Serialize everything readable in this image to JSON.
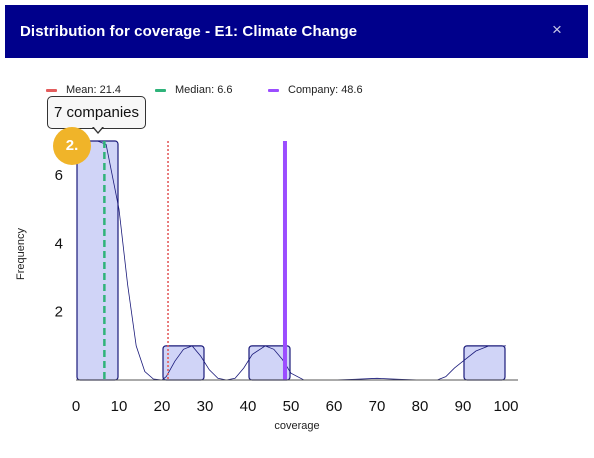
{
  "modal": {
    "title": "Distribution for coverage - E1: Climate Change",
    "close_symbol": "×"
  },
  "legend": {
    "mean_label": "Mean: 21.4",
    "median_label": "Median: 6.6",
    "company_label": "Company: 48.6",
    "mean_color": "#e35d5d",
    "median_color": "#2fb37a",
    "company_color": "#9b4dff"
  },
  "tooltip": {
    "text": "7 companies"
  },
  "step_badge": {
    "text": "2."
  },
  "chart_data": {
    "type": "bar",
    "xlabel": "coverage",
    "ylabel": "Frequency",
    "xlim": [
      0,
      100
    ],
    "ylim": [
      0,
      7
    ],
    "x_ticks": [
      "0",
      "10",
      "20",
      "30",
      "40",
      "50",
      "60",
      "70",
      "80",
      "90",
      "100"
    ],
    "y_ticks": [
      "2",
      "4",
      "6"
    ],
    "bins": [
      {
        "x0": 0,
        "x1": 10,
        "count": 7
      },
      {
        "x0": 20,
        "x1": 30,
        "count": 1
      },
      {
        "x0": 40,
        "x1": 50,
        "count": 1
      },
      {
        "x0": 90,
        "x1": 100,
        "count": 1
      }
    ],
    "mean": 21.4,
    "median": 6.6,
    "company": 48.6,
    "density": [
      [
        0,
        7
      ],
      [
        5,
        7
      ],
      [
        7,
        6.9
      ],
      [
        10,
        5.0
      ],
      [
        12,
        2.8
      ],
      [
        14,
        1.0
      ],
      [
        16,
        0.25
      ],
      [
        18,
        0.03
      ],
      [
        20,
        0.0
      ],
      [
        21,
        0.1
      ],
      [
        23,
        0.55
      ],
      [
        25,
        0.9
      ],
      [
        27,
        1.0
      ],
      [
        29,
        0.7
      ],
      [
        31,
        0.3
      ],
      [
        33,
        0.05
      ],
      [
        35,
        0.0
      ],
      [
        37,
        0.05
      ],
      [
        39,
        0.35
      ],
      [
        41,
        0.75
      ],
      [
        44,
        1.0
      ],
      [
        46,
        0.9
      ],
      [
        48,
        0.6
      ],
      [
        50,
        0.2
      ],
      [
        53,
        0.0
      ],
      [
        60,
        0.0
      ],
      [
        65,
        0.02
      ],
      [
        70,
        0.05
      ],
      [
        75,
        0.02
      ],
      [
        80,
        0.0
      ],
      [
        84,
        0.0
      ],
      [
        86,
        0.1
      ],
      [
        88,
        0.35
      ],
      [
        90,
        0.55
      ],
      [
        93,
        0.85
      ],
      [
        96,
        1.0
      ],
      [
        100,
        1.0
      ]
    ],
    "bar_fill": "#d0d4f7",
    "bar_stroke": "#1a1a7a",
    "curve_color": "#1a1a7a"
  }
}
